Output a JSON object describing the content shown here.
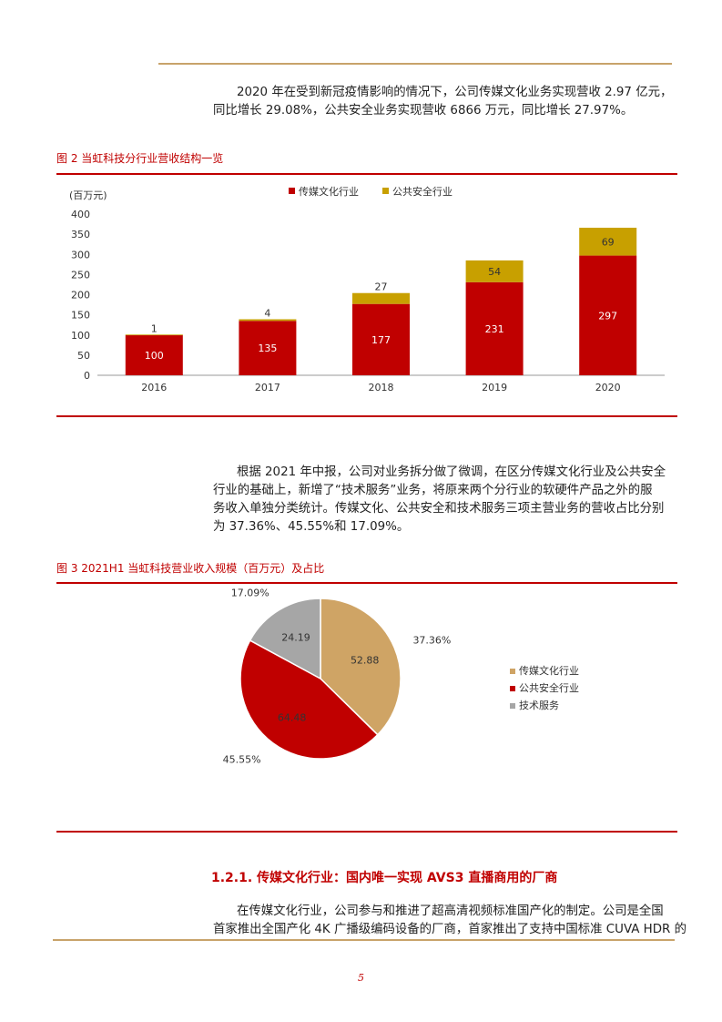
{
  "paragraph1": [
    "2020 年在受到新冠疫情影响的情况下，公司传媒文化业务实现营收 2.97 亿元，",
    "同比增长 29.08%，公共安全业务实现营收 6866 万元，同比增长 27.97%。"
  ],
  "figure2": {
    "title": "图 2  当虹科技分行业营收结构一览",
    "chart_data": {
      "type": "bar",
      "stacked": true,
      "ylabel": "(百万元)",
      "categories": [
        "2016",
        "2017",
        "2018",
        "2019",
        "2020"
      ],
      "series": [
        {
          "name": "传媒文化行业",
          "color": "#c00000",
          "values": [
            100,
            135,
            177,
            231,
            297
          ]
        },
        {
          "name": "公共安全行业",
          "color": "#c8a000",
          "values": [
            1,
            4,
            27,
            54,
            69
          ]
        }
      ],
      "ylim": [
        0,
        400
      ],
      "yticks": [
        "0",
        "50",
        "100",
        "150",
        "200",
        "250",
        "300",
        "350",
        "400"
      ],
      "legend": "top-center",
      "grid": false
    }
  },
  "paragraph2": [
    "根据 2021 年中报，公司对业务拆分做了微调，在区分传媒文化行业及公共安全",
    "行业的基础上，新增了“技术服务”业务，将原来两个分行业的软硬件产品之外的服",
    "务收入单独分类统计。传媒文化、公共安全和技术服务三项主营业务的营收占比分别",
    "为 37.36%、45.55%和 17.09%。"
  ],
  "figure3": {
    "title": "图 3  2021H1 当虹科技营业收入规模（百万元）及占比",
    "chart_data": {
      "type": "pie",
      "slices": [
        {
          "name": "传媒文化行业",
          "value": 52.88,
          "value_label": "52.88",
          "pct_label": "37.36%",
          "color": "#cfa465"
        },
        {
          "name": "公共安全行业",
          "value": 64.48,
          "value_label": "64.48",
          "pct_label": "45.55%",
          "color": "#c00000"
        },
        {
          "name": "技术服务",
          "value": 24.19,
          "value_label": "24.19",
          "pct_label": "17.09%",
          "color": "#a6a6a6"
        }
      ],
      "legend": "right"
    }
  },
  "section": {
    "title": "1.2.1. 传媒文化行业：国内唯一实现 AVS3 直播商用的厂商",
    "paragraph": [
      "在传媒文化行业，公司参与和推进了超高清视频标准国产化的制定。公司是全国",
      "首家推出全国产化 4K 广播级编码设备的厂商，首家推出了支持中国标准 CUVA HDR 的"
    ]
  },
  "page_number": "5"
}
